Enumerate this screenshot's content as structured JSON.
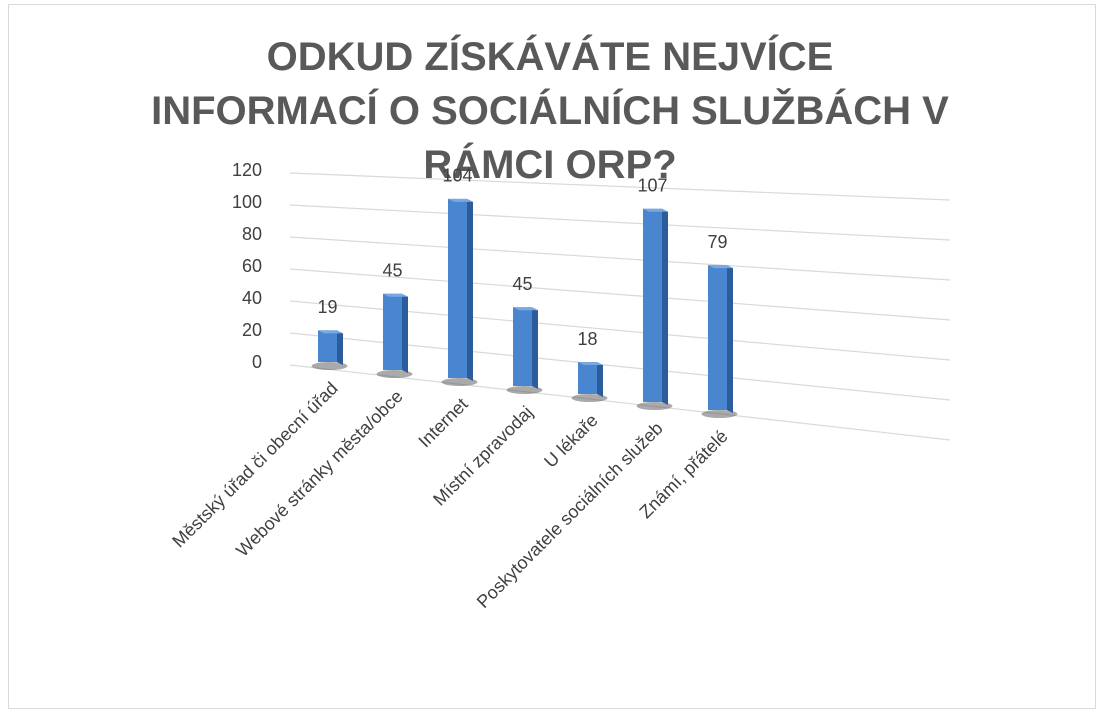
{
  "chart_data": {
    "type": "bar3d",
    "title": "ODKUD ZÍSKÁVÁTE NEJVÍCE INFORMACÍ O SOCIÁLNÍCH SLUŽBÁCH V RÁMCI ORP?",
    "categories": [
      "Městský úřad či obecní úřad",
      "Webové stránky města/obce",
      "Internet",
      "Místní zpravodaj",
      "U lékaře",
      "Poskytovatele sociálních služeb",
      "Známí, přátelé"
    ],
    "values": [
      19,
      45,
      104,
      45,
      18,
      107,
      79
    ],
    "color": "#4a86d0",
    "ylim": [
      0,
      120
    ],
    "yticks": [
      0,
      20,
      40,
      60,
      80,
      100,
      120
    ],
    "grid": true
  }
}
